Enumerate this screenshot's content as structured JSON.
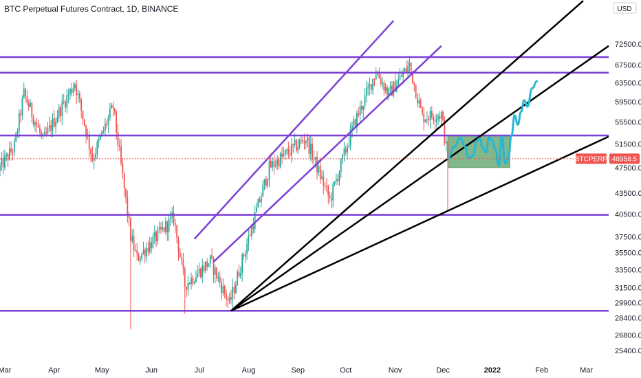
{
  "chart_data": {
    "type": "candlestick",
    "title": "BTC Perpetual Futures Contract, 1D, BINANCE",
    "currency": "USD",
    "symbol": "BTCPERP",
    "last_price": "48958.5",
    "last_price_value": 48958.5,
    "y_axis": {
      "scale": "log",
      "ticks": [
        "72500.00",
        "67500.00",
        "63500.00",
        "59500.00",
        "55500.00",
        "51500.00",
        "47500.00",
        "43500.00",
        "40500.00",
        "37500.00",
        "35500.00",
        "33500.00",
        "31500.00",
        "29900.00",
        "28400.00",
        "26800.00",
        "25400.00"
      ],
      "range": [
        24700,
        80000
      ]
    },
    "x_axis": {
      "range": [
        "2021-02-26",
        "2022-03-15"
      ],
      "ticks": [
        {
          "label": "Mar",
          "date": "2021-03-01",
          "bold": false
        },
        {
          "label": "Apr",
          "date": "2021-04-01",
          "bold": false
        },
        {
          "label": "May",
          "date": "2021-05-01",
          "bold": false
        },
        {
          "label": "Jun",
          "date": "2021-06-01",
          "bold": false
        },
        {
          "label": "Jul",
          "date": "2021-07-01",
          "bold": false
        },
        {
          "label": "Aug",
          "date": "2021-08-01",
          "bold": false
        },
        {
          "label": "Sep",
          "date": "2021-09-01",
          "bold": false
        },
        {
          "label": "Oct",
          "date": "2021-10-01",
          "bold": false
        },
        {
          "label": "Nov",
          "date": "2021-11-01",
          "bold": false
        },
        {
          "label": "Dec",
          "date": "2021-12-01",
          "bold": false
        },
        {
          "label": "2022",
          "date": "2022-01-01",
          "bold": true
        },
        {
          "label": "Feb",
          "date": "2022-02-01",
          "bold": false
        },
        {
          "label": "Mar",
          "date": "2022-03-01",
          "bold": false
        }
      ]
    },
    "price_path": [
      [
        "2021-02-26",
        47500
      ],
      [
        "2021-03-07",
        51000
      ],
      [
        "2021-03-13",
        61200
      ],
      [
        "2021-03-25",
        52000
      ],
      [
        "2021-04-14",
        63500
      ],
      [
        "2021-04-25",
        49000
      ],
      [
        "2021-05-08",
        58500
      ],
      [
        "2021-05-19",
        37500
      ],
      [
        "2021-05-23",
        34800
      ],
      [
        "2021-06-15",
        40000
      ],
      [
        "2021-06-22",
        31800
      ],
      [
        "2021-07-08",
        34500
      ],
      [
        "2021-07-20",
        29800
      ],
      [
        "2021-08-14",
        47500
      ],
      [
        "2021-09-06",
        52500
      ],
      [
        "2021-09-21",
        42500
      ],
      [
        "2021-10-06",
        55000
      ],
      [
        "2021-10-20",
        66000
      ],
      [
        "2021-10-28",
        61000
      ],
      [
        "2021-11-10",
        67500
      ],
      [
        "2021-11-18",
        56500
      ],
      [
        "2021-11-30",
        57000
      ],
      [
        "2021-12-04",
        48958.5
      ]
    ],
    "annotations": {
      "horizontal_lines": [
        {
          "y": 69300,
          "from": "2021-02-26",
          "to": "2022-03-15",
          "color": "#7b3fd6"
        },
        {
          "y": 65700,
          "from": "2021-02-26",
          "to": "2022-03-15",
          "color": "#7b3fd6"
        },
        {
          "y": 53000,
          "from": "2021-02-26",
          "to": "2022-03-15",
          "color": "#7b3fd6"
        },
        {
          "y": 40400,
          "from": "2021-02-26",
          "to": "2022-03-15",
          "color": "#7b3fd6"
        },
        {
          "y": 29100,
          "from": "2021-02-26",
          "to": "2022-03-15",
          "color": "#7b3fd6"
        }
      ],
      "channel_lines": [
        {
          "p1": [
            "2021-06-28",
            37200
          ],
          "p2": [
            "2021-10-31",
            78500
          ],
          "color": "#7b3fd6"
        },
        {
          "p1": [
            "2021-07-10",
            34400
          ],
          "p2": [
            "2021-11-30",
            72000
          ],
          "color": "#7b3fd6"
        }
      ],
      "fan_lines": [
        {
          "p1": [
            "2021-07-21",
            29100
          ],
          "p2": [
            "2022-02-27",
            84000
          ],
          "color": "#000000"
        },
        {
          "p1": [
            "2021-07-21",
            29100
          ],
          "p2": [
            "2022-03-15",
            72000
          ],
          "color": "#000000"
        },
        {
          "p1": [
            "2021-07-21",
            29100
          ],
          "p2": [
            "2022-03-15",
            52800
          ],
          "color": "#000000"
        }
      ],
      "box": {
        "from": "2021-12-04",
        "to": "2022-01-12",
        "y_top": 53000,
        "y_bottom": 47500,
        "color": "#1b7a2c"
      },
      "projection": [
        [
          "2021-12-04",
          49000
        ],
        [
          "2021-12-08",
          51000
        ],
        [
          "2021-12-12",
          52600
        ],
        [
          "2021-12-15",
          51000
        ],
        [
          "2021-12-17",
          49000
        ],
        [
          "2021-12-20",
          49500
        ],
        [
          "2021-12-22",
          52000
        ],
        [
          "2021-12-24",
          52500
        ],
        [
          "2021-12-26",
          50800
        ],
        [
          "2021-12-28",
          50000
        ],
        [
          "2021-12-30",
          52700
        ],
        [
          "2022-01-01",
          52000
        ],
        [
          "2022-01-03",
          50500
        ],
        [
          "2022-01-05",
          47800
        ],
        [
          "2022-01-07",
          52800
        ],
        [
          "2022-01-09",
          48200
        ],
        [
          "2022-01-11",
          49000
        ],
        [
          "2022-01-13",
          53000
        ],
        [
          "2022-01-15",
          56800
        ],
        [
          "2022-01-17",
          55000
        ],
        [
          "2022-01-19",
          57500
        ],
        [
          "2022-01-21",
          59800
        ],
        [
          "2022-01-23",
          58500
        ],
        [
          "2022-01-26",
          62300
        ],
        [
          "2022-01-29",
          63800
        ]
      ],
      "projection_color": "#26b7d6"
    },
    "colors": {
      "up": "#26a69a",
      "down": "#ef5350",
      "label_bg": "#ef5350",
      "purple": "#7b3fd6"
    }
  }
}
